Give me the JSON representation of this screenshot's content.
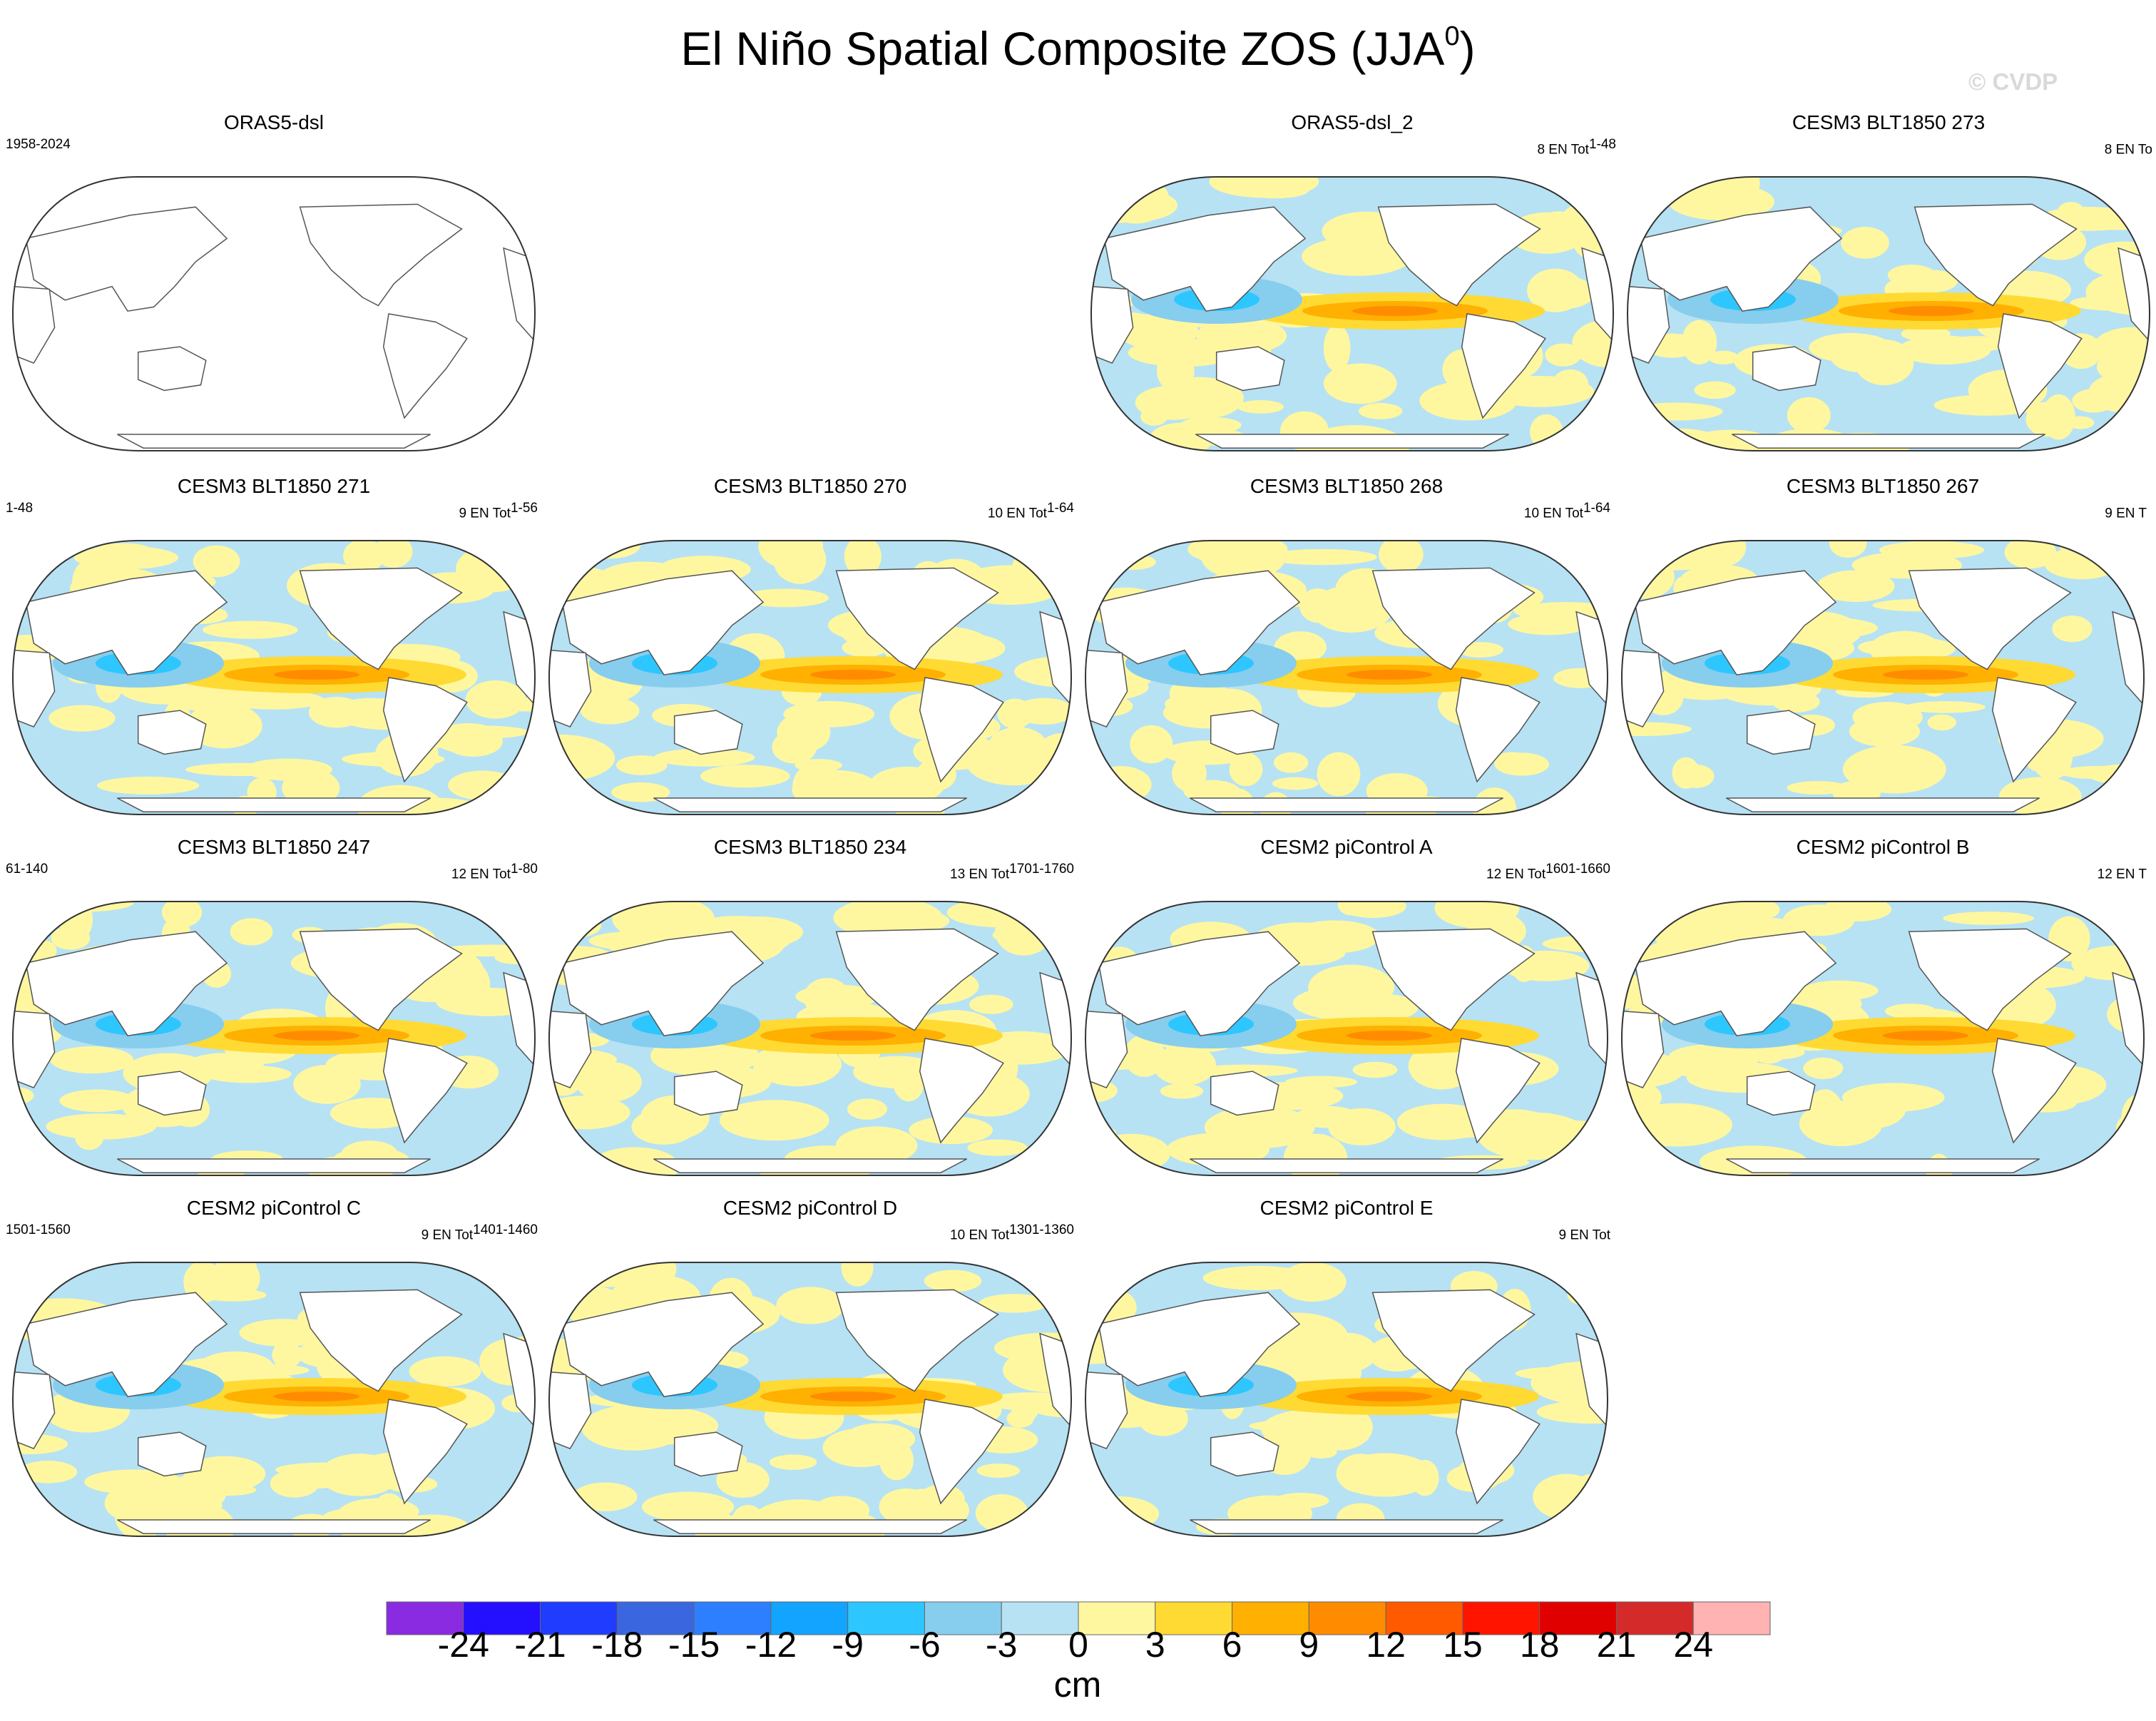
{
  "chart_data": {
    "type": "heatmap",
    "title": "El Niño Spatial Composite ZOS (JJA",
    "title_superscript": "0",
    "watermark": "© CVDP",
    "projection": "Robinson (Pacific-centered)",
    "colorbar": {
      "unit": "cm",
      "ticks": [
        "-24",
        "-21",
        "-18",
        "-15",
        "-12",
        "-9",
        "-6",
        "-3",
        "0",
        "3",
        "6",
        "9",
        "12",
        "15",
        "18",
        "21",
        "24"
      ],
      "colors": [
        "#8a2be2",
        "#2410ff",
        "#1f3cff",
        "#3a66e0",
        "#2d7fff",
        "#12a4ff",
        "#2ec6ff",
        "#87cdee",
        "#b6e2f4",
        "#fff7a0",
        "#ffda33",
        "#ffb000",
        "#ff8c00",
        "#ff5a00",
        "#ff1400",
        "#e10000",
        "#d42a2a",
        "#ffb3b3"
      ]
    },
    "panels": [
      {
        "title": "ORAS5-dsl",
        "left": "1958-2024",
        "right_pre": "",
        "right_sup": "",
        "filled": false
      },
      {
        "title": "ORAS5-dsl_2",
        "left": "",
        "right_pre": "8 EN Tot",
        "right_sup": "1-48",
        "filled": true
      },
      {
        "title": "CESM3 BLT1850 273",
        "left": "",
        "right_pre": "8 EN To",
        "right_sup": "",
        "filled": true
      },
      {
        "title": "CESM3 BLT1850 271",
        "left": "1-48",
        "right_pre": "9 EN Tot",
        "right_sup": "1-56",
        "filled": true
      },
      {
        "title": "CESM3 BLT1850 270",
        "left": "",
        "right_pre": "10 EN Tot",
        "right_sup": "1-64",
        "filled": true
      },
      {
        "title": "CESM3 BLT1850 268",
        "left": "",
        "right_pre": "10 EN Tot",
        "right_sup": "1-64",
        "filled": true
      },
      {
        "title": "CESM3 BLT1850 267",
        "left": "",
        "right_pre": "9 EN T",
        "right_sup": "",
        "filled": true
      },
      {
        "title": "CESM3 BLT1850 247",
        "left": "61-140",
        "right_pre": "12 EN Tot",
        "right_sup": "1-80",
        "filled": true
      },
      {
        "title": "CESM3 BLT1850 234",
        "left": "",
        "right_pre": "13 EN Tot",
        "right_sup": "1701-1760",
        "filled": true
      },
      {
        "title": "CESM2 piControl A",
        "left": "",
        "right_pre": "12 EN Tot",
        "right_sup": "1601-1660",
        "filled": true
      },
      {
        "title": "CESM2 piControl B",
        "left": "",
        "right_pre": "12 EN T",
        "right_sup": "",
        "filled": true
      },
      {
        "title": "CESM2 piControl C",
        "left": "1501-1560",
        "right_pre": "9 EN Tot",
        "right_sup": "1401-1460",
        "filled": true
      },
      {
        "title": "CESM2 piControl D",
        "left": "",
        "right_pre": "10 EN Tot",
        "right_sup": "1301-1360",
        "filled": true
      },
      {
        "title": "CESM2 piControl E",
        "left": "",
        "right_pre": "9 EN Tot",
        "right_sup": "",
        "filled": true
      }
    ]
  }
}
